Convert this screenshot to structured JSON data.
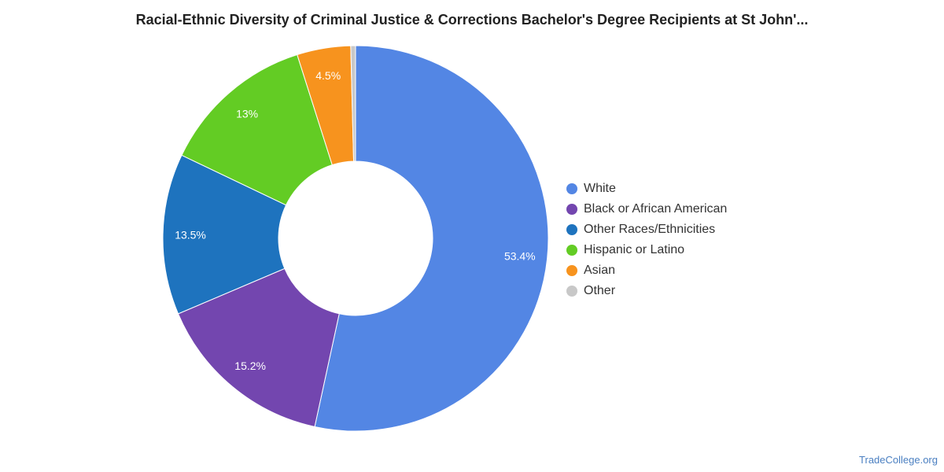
{
  "chart_data": {
    "type": "pie",
    "title": "Racial-Ethnic Diversity of Criminal Justice & Corrections Bachelor's Degree Recipients at St John'...",
    "legend_position": "right",
    "slices": [
      {
        "name": "White",
        "value": 53.4,
        "label": "53.4%",
        "color": "#5386e4"
      },
      {
        "name": "Black or African American",
        "value": 15.2,
        "label": "15.2%",
        "color": "#7346af"
      },
      {
        "name": "Other Races/Ethnicities",
        "value": 13.5,
        "label": "13.5%",
        "color": "#1e73be"
      },
      {
        "name": "Hispanic or Latino",
        "value": 13.0,
        "label": "13%",
        "color": "#63cc24"
      },
      {
        "name": "Asian",
        "value": 4.5,
        "label": "4.5%",
        "color": "#f7931e"
      },
      {
        "name": "Other",
        "value": 0.4,
        "label": "",
        "color": "#c8c8c8"
      }
    ]
  },
  "watermark": "TradeCollege.org"
}
